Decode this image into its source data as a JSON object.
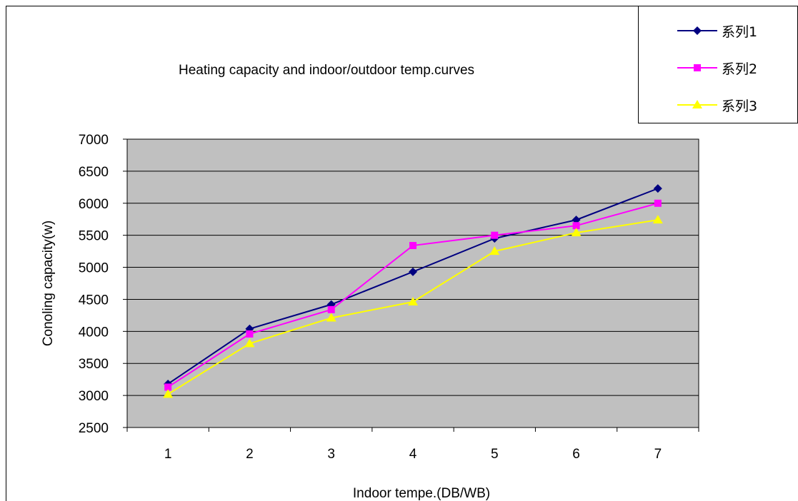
{
  "chart_data": {
    "type": "line",
    "title": "Heating capacity and indoor/outdoor temp.curves",
    "xlabel": "Indoor tempe.(DB/WB)",
    "ylabel": "Conoling capacity(w)",
    "categories": [
      "1",
      "2",
      "3",
      "4",
      "5",
      "6",
      "7"
    ],
    "ylim": [
      2500,
      7000
    ],
    "yticks": [
      "2500",
      "3000",
      "3500",
      "4000",
      "4500",
      "5000",
      "5500",
      "6000",
      "6500",
      "7000"
    ],
    "grid": true,
    "legend_position": "top-right",
    "plot_background": "#c0c0c0",
    "series": [
      {
        "name": "系列1",
        "color": "#000080",
        "marker": "diamond",
        "values": [
          3180,
          4040,
          4420,
          4930,
          5450,
          5740,
          6230
        ]
      },
      {
        "name": "系列2",
        "color": "#ff00ff",
        "marker": "square",
        "values": [
          3130,
          3960,
          4340,
          5340,
          5500,
          5650,
          6000
        ]
      },
      {
        "name": "系列3",
        "color": "#ffff00",
        "marker": "triangle",
        "values": [
          3020,
          3810,
          4210,
          4460,
          5250,
          5540,
          5740
        ]
      }
    ]
  }
}
